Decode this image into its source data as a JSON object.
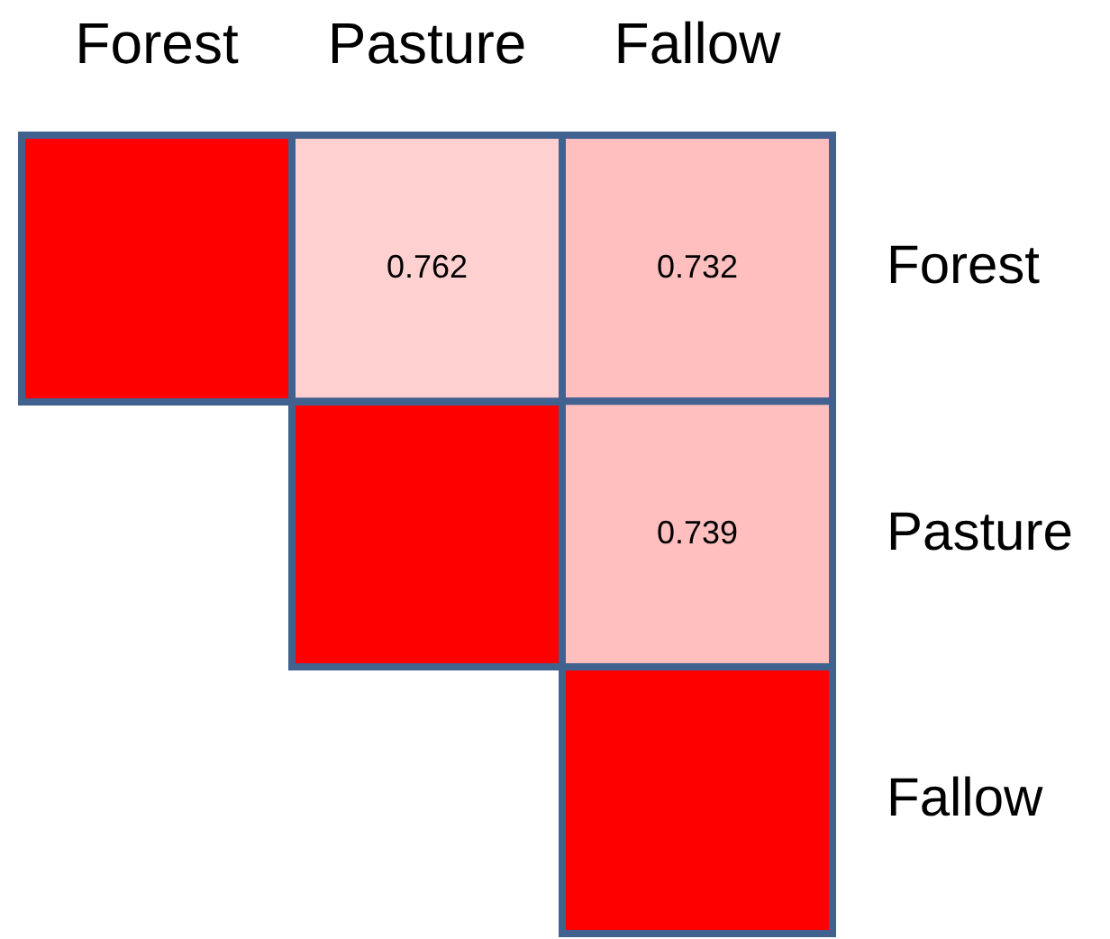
{
  "chart_data": {
    "type": "heatmap",
    "categories": [
      "Forest",
      "Pasture",
      "Fallow"
    ],
    "y_categories": [
      "Forest",
      "Pasture",
      "Fallow"
    ],
    "data_labels": true,
    "cells": [
      [
        null,
        0.762,
        0.732
      ],
      [
        null,
        null,
        0.739
      ],
      [
        null,
        null,
        null
      ]
    ],
    "colors": [
      [
        "#ff0000",
        "#ffd0d0",
        "#ffbfbf"
      ],
      [
        null,
        "#ff0000",
        "#ffbfbf"
      ],
      [
        null,
        null,
        "#ff0000"
      ]
    ]
  }
}
